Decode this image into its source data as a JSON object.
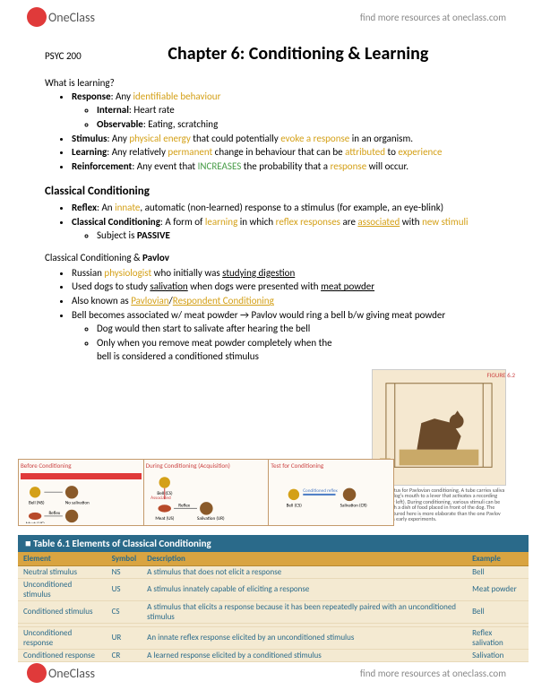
{
  "brand": {
    "name": "OneClass",
    "tagline": "find more resources at oneclass.com"
  },
  "course": "PSYC 200",
  "chapter_title": "Chapter 6: Conditioning & Learning",
  "s1": {
    "heading": "What is learning?",
    "b1": {
      "term": "Response",
      "def": ": Any ",
      "kw": "identifiable behaviour"
    },
    "b1a": {
      "term": "Internal",
      "def": ": Heart rate"
    },
    "b1b": {
      "term": "Observable",
      "def": ": Eating, scratching"
    },
    "b2": {
      "term": "Stimulus",
      "def1": ": Any ",
      "kw1": "physical energy",
      "def2": " that could potentially ",
      "kw2": "evoke a response",
      "def3": " in an organism."
    },
    "b3": {
      "term": "Learning",
      "def1": ": Any relatively ",
      "kw1": "permanent",
      "def2": " change in behaviour that can be ",
      "kw2": "attributed",
      "def3": " to ",
      "kw3": "experience"
    },
    "b4": {
      "term": "Reinforcement",
      "def1": ": Any event that ",
      "kw1": "INCREASES",
      "def2": " the probability that a ",
      "kw2": "response",
      "def3": " will occur."
    }
  },
  "s2": {
    "heading": "Classical Conditioning",
    "b1": {
      "term": "Reflex",
      "def1": ": An ",
      "kw1": "innate",
      "def2": ", automatic (non-learned) response to a stimulus (for example, an eye-blink)"
    },
    "b2": {
      "term": "Classical Conditioning",
      "def1": ": A form of ",
      "kw1": "learning",
      "def2": " in which ",
      "kw2": "reflex responses",
      "def3": " are ",
      "kw3": "associated",
      "def4": " with ",
      "kw4": "new stimuli"
    },
    "b2a": {
      "pre": "Subject is ",
      "term": "PASSIVE"
    }
  },
  "s3": {
    "heading": "Classical Conditioning & Pavlov",
    "b1": {
      "pre": "Russian ",
      "kw1": "physiologist",
      "mid": " who initially was ",
      "u1": "studying digestion"
    },
    "b2": {
      "pre": "Used dogs to study ",
      "u1": "salivation",
      "mid": " when dogs were presented with ",
      "u2": "meat powder"
    },
    "b3": {
      "pre": "Also known as ",
      "kw1": "Pavlovian",
      "sep": "/",
      "kw2": "Respondent Conditioning"
    },
    "b4": "Bell becomes associated w/ meat powder → Pavlov would ring a bell b/w giving meat powder",
    "b4a": "Dog would then start to salivate after hearing the bell",
    "b4b": "Only when you remove meat powder completely when the bell is considered a conditioned stimulus"
  },
  "flow": {
    "p1": "Before Conditioning",
    "p2": "During Conditioning (Acquisition)",
    "p3": "Test for Conditioning"
  },
  "figure": {
    "label": "FIGURE 6.2",
    "caption": "An apparatus for Pavlovian conditioning. A tube carries saliva from the dog's mouth to a lever that activates a recording device (far left). During conditioning, various stimuli can be paired with a dish of food placed in front of the dog. The device pictured here is more elaborate than the one Pavlov used in his early experiments."
  },
  "table": {
    "title": "■ Table 6.1   Elements of Classical Conditioning",
    "headers": [
      "Element",
      "Symbol",
      "Description",
      "Example"
    ],
    "rows": [
      [
        "Neutral stimulus",
        "NS",
        "A stimulus that does not elicit a response",
        "Bell"
      ],
      [
        "Unconditioned stimulus",
        "US",
        "A stimulus innately capable of eliciting a response",
        "Meat powder"
      ],
      [
        "Conditioned stimulus",
        "CS",
        "A stimulus that elicits a response because it has been repeatedly paired with an unconditioned stimulus",
        "Bell"
      ],
      [
        "Unconditioned response",
        "UR",
        "An innate reflex response elicited by an unconditioned stimulus",
        "Reflex salivation"
      ],
      [
        "Conditioned response",
        "CR",
        "A learned response elicited by a conditioned stimulus",
        "Salivation"
      ]
    ]
  },
  "colors": {
    "keyword": "#d4a017",
    "increases": "#4a9d4a",
    "table_header_bg": "#2a6a8a",
    "table_th_bg": "#d9a441",
    "table_td_bg": "#f4ead2"
  }
}
